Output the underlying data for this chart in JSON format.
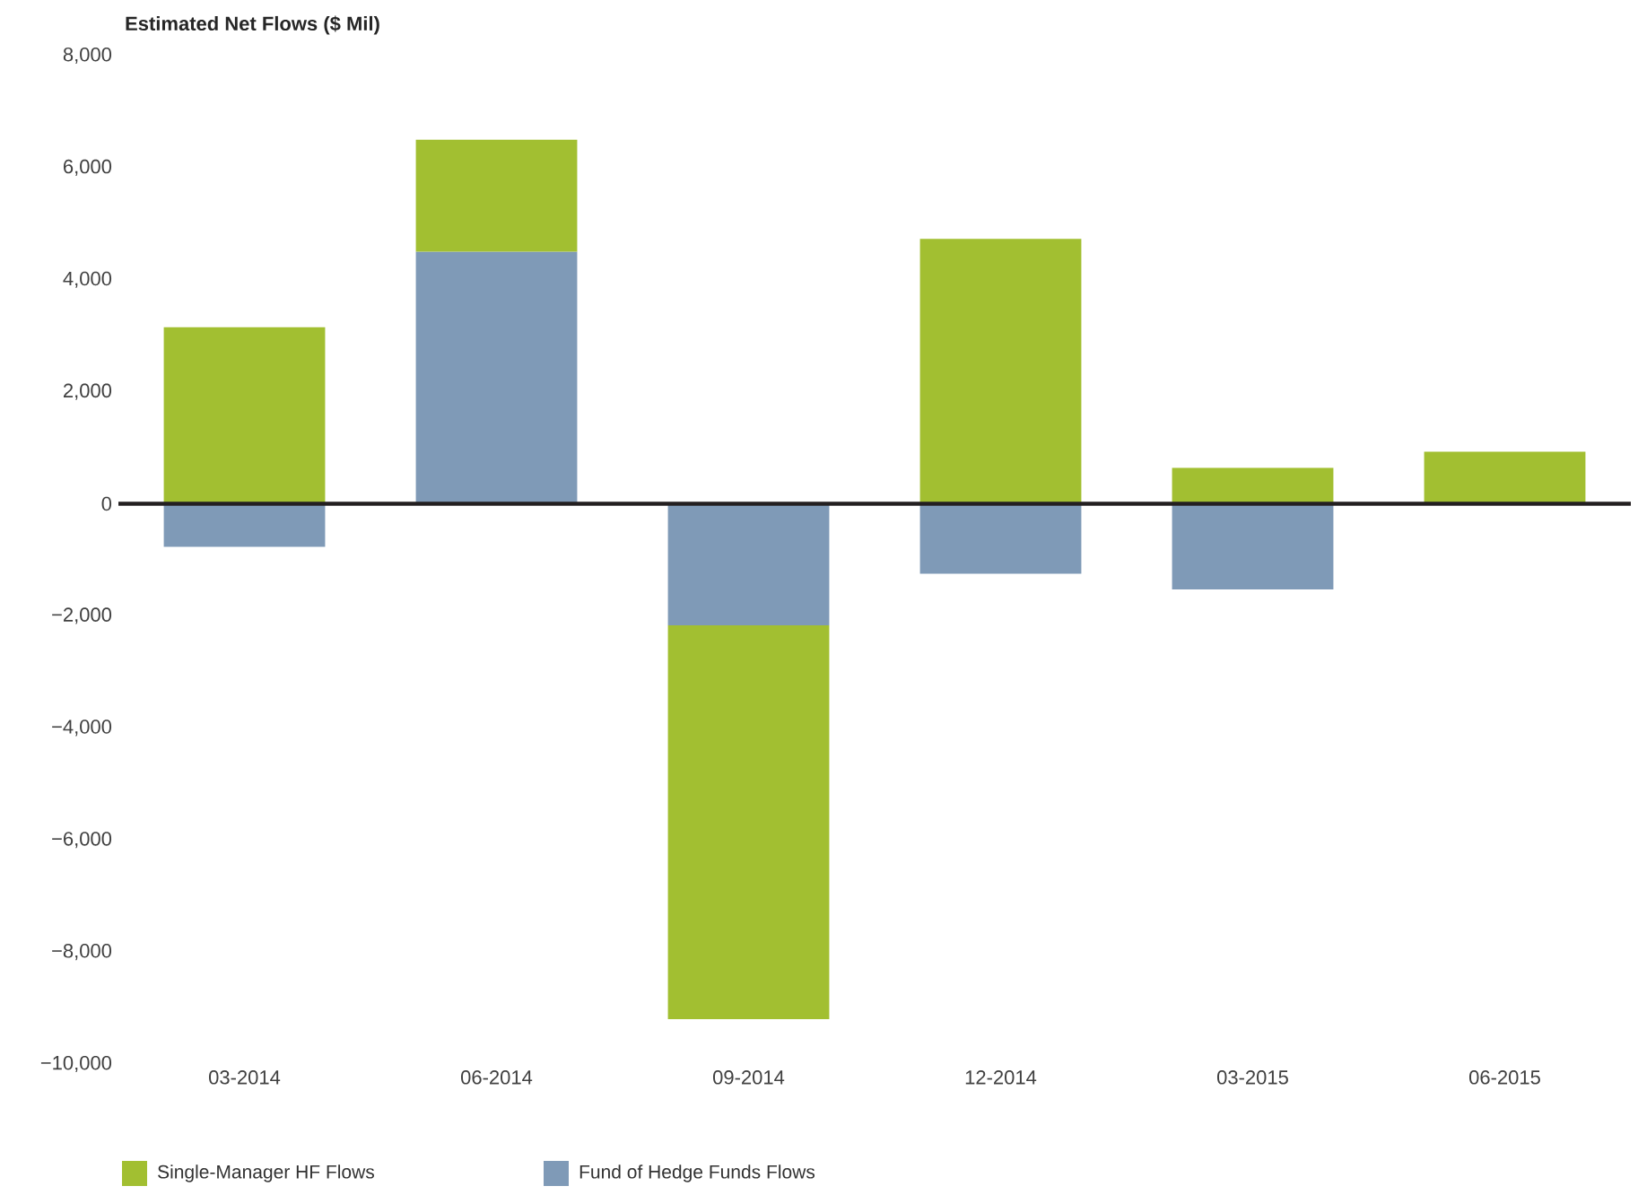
{
  "chart_data": {
    "type": "bar",
    "stacked": true,
    "title": "Estimated Net Flows ($ Mil)",
    "categories": [
      "03-2014",
      "06-2014",
      "09-2014",
      "12-2014",
      "03-2015",
      "06-2015"
    ],
    "series": [
      {
        "name": "Fund of Hedge Funds Flows",
        "color": "#7f9ab7",
        "values": [
          -770,
          4500,
          -2170,
          -1250,
          -1530,
          0
        ]
      },
      {
        "name": "Single-Manager HF Flows",
        "color": "#a2bf31",
        "values": [
          3150,
          2000,
          -7030,
          4730,
          640,
          930
        ]
      }
    ],
    "ylim": [
      -10000,
      8000
    ],
    "yticks": [
      {
        "value": -10000,
        "label": "−10,000"
      },
      {
        "value": -8000,
        "label": "−8,000"
      },
      {
        "value": -6000,
        "label": "−6,000"
      },
      {
        "value": -4000,
        "label": "−4,000"
      },
      {
        "value": -2000,
        "label": "−2,000"
      },
      0,
      {
        "value": 2000,
        "label": "2,000"
      },
      {
        "value": 4000,
        "label": "4,000"
      },
      {
        "value": 6000,
        "label": "6,000"
      },
      {
        "value": 8000,
        "label": "8,000"
      }
    ],
    "ref_lines": [
      {
        "axis": "y",
        "value": 0,
        "color": "#231f20"
      }
    ],
    "grid": false,
    "legend": "bottom"
  }
}
